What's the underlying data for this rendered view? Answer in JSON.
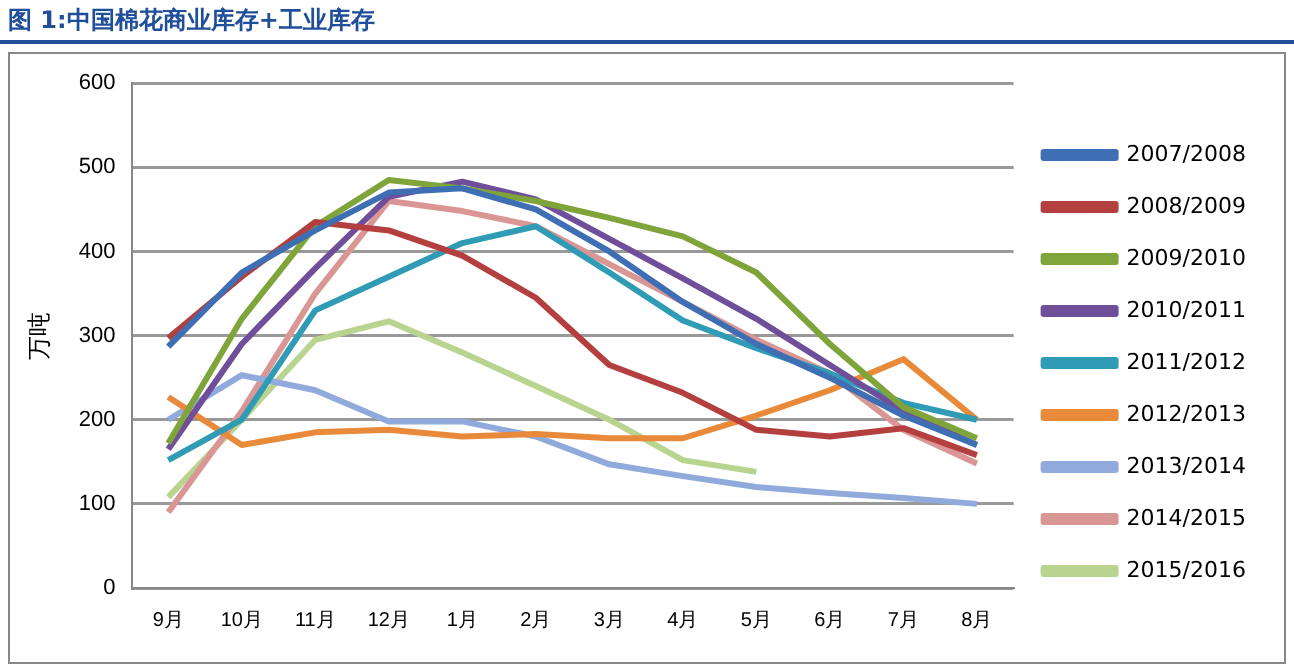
{
  "chart_data": {
    "type": "line",
    "title": "图 1:中国棉花商业库存+工业库存",
    "ylabel": "万吨",
    "categories": [
      "9月",
      "10月",
      "11月",
      "12月",
      "1月",
      "2月",
      "3月",
      "4月",
      "5月",
      "6月",
      "7月",
      "8月"
    ],
    "ylim": [
      0,
      600
    ],
    "yticks": [
      0,
      100,
      200,
      300,
      400,
      500,
      600
    ],
    "grid": "y",
    "legend": "right",
    "marker": "none",
    "line_style": "solid",
    "series": [
      {
        "name": "2007/2008",
        "color": "#3e6eb4",
        "values": [
          287,
          375,
          425,
          470,
          475,
          450,
          400,
          340,
          290,
          250,
          205,
          170
        ]
      },
      {
        "name": "2008/2009",
        "color": "#b3403e",
        "values": [
          297,
          370,
          435,
          425,
          395,
          345,
          265,
          232,
          188,
          180,
          190,
          158
        ]
      },
      {
        "name": "2009/2010",
        "color": "#7ea43a",
        "values": [
          172,
          320,
          430,
          485,
          475,
          460,
          440,
          418,
          375,
          290,
          215,
          178
        ]
      },
      {
        "name": "2010/2011",
        "color": "#6f4f9a",
        "values": [
          165,
          290,
          380,
          465,
          483,
          462,
          415,
          368,
          320,
          265,
          210,
          170
        ]
      },
      {
        "name": "2011/2012",
        "color": "#2f9bb4",
        "values": [
          152,
          200,
          330,
          370,
          410,
          430,
          375,
          318,
          285,
          255,
          220,
          200
        ]
      },
      {
        "name": "2012/2013",
        "color": "#e88a3a",
        "values": [
          227,
          170,
          185,
          188,
          180,
          183,
          178,
          178,
          205,
          235,
          272,
          200
        ]
      },
      {
        "name": "2013/2014",
        "color": "#8faadb",
        "values": [
          200,
          253,
          235,
          198,
          198,
          180,
          147,
          133,
          120,
          113,
          107,
          100
        ]
      },
      {
        "name": "2014/2015",
        "color": "#d99694",
        "values": [
          90,
          210,
          350,
          460,
          448,
          430,
          385,
          340,
          295,
          255,
          188,
          148
        ]
      },
      {
        "name": "2015/2016",
        "color": "#b8d48e",
        "values": [
          108,
          200,
          295,
          317,
          280,
          240,
          200,
          152,
          138,
          null,
          null,
          null
        ]
      }
    ]
  }
}
